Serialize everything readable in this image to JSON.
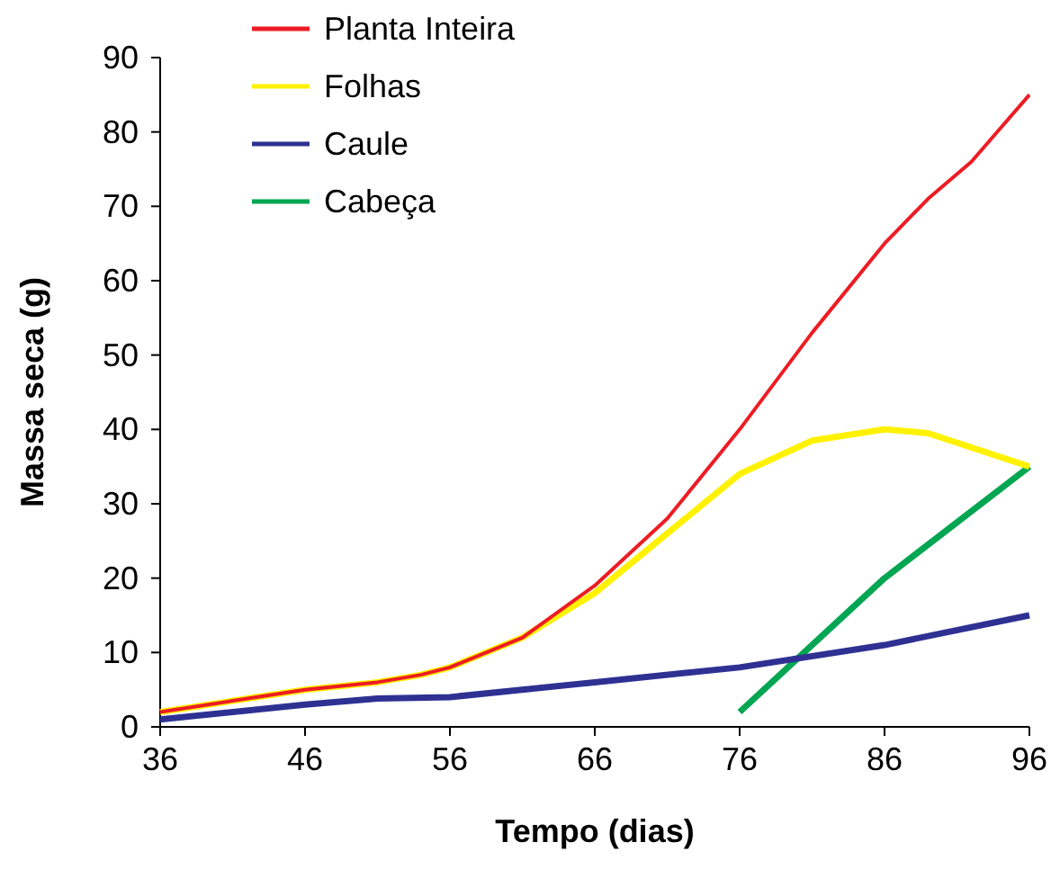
{
  "chart_data": {
    "type": "line",
    "xlabel": "Tempo (dias)",
    "ylabel": "Massa seca (g)",
    "xlim": [
      36,
      96
    ],
    "xticks": [
      36,
      46,
      56,
      66,
      76,
      86,
      96
    ],
    "ylim": [
      0,
      90
    ],
    "yticks": [
      0,
      10,
      20,
      30,
      40,
      50,
      60,
      70,
      80,
      90
    ],
    "grid": false,
    "legend": "top left",
    "marker": "none",
    "series": [
      {
        "name": "Planta Inteira",
        "color": "#ed1c24",
        "x": [
          36,
          41,
          46,
          51,
          54,
          56,
          61,
          66,
          71,
          76,
          81,
          86,
          89,
          92,
          94,
          96
        ],
        "values": [
          2,
          3.5,
          5,
          6,
          7,
          8,
          12,
          19,
          28,
          40,
          53,
          65,
          71,
          76,
          80.5,
          85
        ]
      },
      {
        "name": "Folhas",
        "color": "#fff200",
        "x": [
          36,
          41,
          46,
          51,
          54,
          56,
          61,
          66,
          71,
          76,
          81,
          86,
          89,
          96
        ],
        "values": [
          2,
          3.5,
          5,
          6,
          7,
          8,
          12,
          18,
          26,
          34,
          38.5,
          40,
          39.5,
          35
        ]
      },
      {
        "name": "Caule",
        "color": "#2e3192",
        "x": [
          36,
          46,
          51,
          56,
          66,
          76,
          86,
          96
        ],
        "values": [
          1,
          3,
          3.8,
          4,
          6,
          8,
          11,
          15
        ]
      },
      {
        "name": "Cabeça",
        "color": "#00a651",
        "x": [
          76,
          86,
          96
        ],
        "values": [
          2,
          20,
          35
        ]
      }
    ]
  }
}
